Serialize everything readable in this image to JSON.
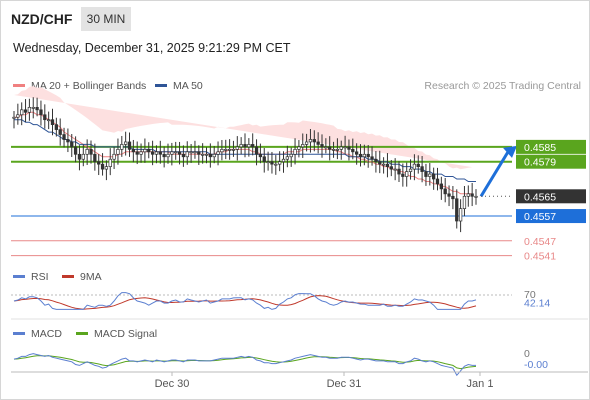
{
  "header": {
    "symbol": "NZD/CHF",
    "timeframe": "30 MIN",
    "datetime": "Wednesday, December 31, 2025 9:21:29 PM CET",
    "research": "Research © 2025 Trading Central"
  },
  "legend": {
    "ma20": "MA 20 + Bollinger Bands",
    "ma50": "MA 50",
    "rsi": "RSI",
    "rsi_ma": "9MA",
    "macd": "MACD",
    "macd_signal": "MACD Signal"
  },
  "colors": {
    "ma20": "#f08080",
    "bollinger_fill": "#fde0e0",
    "ma50": "#2f5597",
    "resistance": "#5aa51e",
    "current": "#1e6fd9",
    "support": "#e88888",
    "candle": "#333333",
    "rsi": "#5b7fd0",
    "rsi_ma": "#c0392b",
    "macd": "#5b7fd0",
    "macd_signal": "#5aa51e"
  },
  "chart_data": {
    "type": "candlestick",
    "instrument": "NZD/CHF",
    "ylim": [
      0.4538,
      0.4606
    ],
    "x_labels": [
      "Dec 30",
      "Dec 31",
      "Jan 1"
    ],
    "levels": [
      {
        "label": "0.4585",
        "value": 0.4585,
        "kind": "resistance"
      },
      {
        "label": "0.4579",
        "value": 0.4579,
        "kind": "resistance"
      },
      {
        "label": "0.4565",
        "value": 0.4565,
        "kind": "last"
      },
      {
        "label": "0.4557",
        "value": 0.4557,
        "kind": "pivot"
      },
      {
        "label": "0.4547",
        "value": 0.4547,
        "kind": "support"
      },
      {
        "label": "0.4541",
        "value": 0.4541,
        "kind": "support"
      }
    ],
    "close": [
      0.4597,
      0.4598,
      0.46,
      0.4599,
      0.4601,
      0.4601,
      0.46,
      0.4598,
      0.4596,
      0.4596,
      0.4594,
      0.4592,
      0.459,
      0.4588,
      0.4587,
      0.4585,
      0.4582,
      0.458,
      0.4582,
      0.4584,
      0.4582,
      0.4579,
      0.4578,
      0.4576,
      0.4577,
      0.458,
      0.4582,
      0.4584,
      0.4586,
      0.4587,
      0.4584,
      0.4583,
      0.4582,
      0.4583,
      0.4584,
      0.4583,
      0.4582,
      0.4583,
      0.4582,
      0.4581,
      0.4582,
      0.4583,
      0.4583,
      0.4582,
      0.4581,
      0.4583,
      0.4583,
      0.4583,
      0.4582,
      0.4582,
      0.4582,
      0.4581,
      0.4582,
      0.4583,
      0.4584,
      0.4584,
      0.4584,
      0.4584,
      0.4585,
      0.4586,
      0.4585,
      0.4586,
      0.4585,
      0.4582,
      0.4581,
      0.4579,
      0.4579,
      0.4578,
      0.4578,
      0.4579,
      0.458,
      0.4581,
      0.4582,
      0.4584,
      0.4585,
      0.4586,
      0.4587,
      0.4588,
      0.4587,
      0.4586,
      0.4585,
      0.4585,
      0.4584,
      0.4584,
      0.4584,
      0.4585,
      0.4585,
      0.4584,
      0.4583,
      0.4582,
      0.4581,
      0.4582,
      0.4581,
      0.458,
      0.4579,
      0.4578,
      0.4578,
      0.4577,
      0.4576,
      0.4576,
      0.4574,
      0.4573,
      0.4575,
      0.4576,
      0.4578,
      0.4577,
      0.4575,
      0.4573,
      0.4574,
      0.4572,
      0.457,
      0.4568,
      0.4566,
      0.4565,
      0.4564,
      0.4555,
      0.456,
      0.4565,
      0.4566,
      0.4565,
      0.4565
    ],
    "ma20": [
      0.4597,
      0.4597,
      0.4598,
      0.4598,
      0.4599,
      0.4599,
      0.4598,
      0.4598,
      0.4597,
      0.4596,
      0.4595,
      0.4594,
      0.4593,
      0.4591,
      0.459,
      0.4589,
      0.4588,
      0.4587,
      0.4586,
      0.4585,
      0.4584,
      0.4583,
      0.4582,
      0.4581,
      0.4581,
      0.4581,
      0.4581,
      0.4582,
      0.4582,
      0.4583,
      0.4583,
      0.4583,
      0.4583,
      0.4583,
      0.4583,
      0.4583,
      0.4583,
      0.4583,
      0.4583,
      0.4583,
      0.4583,
      0.4582,
      0.4582,
      0.4582,
      0.4582,
      0.4582,
      0.4582,
      0.4582,
      0.4582,
      0.4582,
      0.4582,
      0.4582,
      0.4582,
      0.4583,
      0.4583,
      0.4583,
      0.4584,
      0.4584,
      0.4584,
      0.4584,
      0.4584,
      0.4584,
      0.4583,
      0.4583,
      0.4582,
      0.4582,
      0.4582,
      0.4582,
      0.4582,
      0.4582,
      0.4582,
      0.4583,
      0.4583,
      0.4583,
      0.4583,
      0.4584,
      0.4584,
      0.4584,
      0.4584,
      0.4584,
      0.4584,
      0.4584,
      0.4584,
      0.4584,
      0.4583,
      0.4583,
      0.4582,
      0.4582,
      0.4581,
      0.4581,
      0.458,
      0.458,
      0.4579,
      0.4579,
      0.4578,
      0.4578,
      0.4577,
      0.4577,
      0.4576,
      0.4576,
      0.4575,
      0.4575,
      0.4574,
      0.4573,
      0.4573,
      0.4572,
      0.4572,
      0.4571,
      0.4571,
      0.457,
      0.457,
      0.4569,
      0.4569,
      0.4568,
      0.4567,
      0.4567,
      0.4566,
      0.4566,
      0.4566,
      0.4566
    ],
    "ma50": [
      0.4596,
      0.4596,
      0.4596,
      0.4595,
      0.4595,
      0.4594,
      0.4594,
      0.4593,
      0.4592,
      0.4591,
      0.4591,
      0.459,
      0.4589,
      0.4588,
      0.4588,
      0.4587,
      0.4587,
      0.4586,
      0.4586,
      0.4586,
      0.4586,
      0.4585,
      0.4585,
      0.4585,
      0.4585,
      0.4585,
      0.4585,
      0.4585,
      0.4585,
      0.4585,
      0.4585,
      0.4584,
      0.4584,
      0.4584,
      0.4584,
      0.4584,
      0.4584,
      0.4583,
      0.4583,
      0.4583,
      0.4583,
      0.4583,
      0.4583,
      0.4583,
      0.4583,
      0.4583,
      0.4583,
      0.4583,
      0.4583,
      0.4583,
      0.4583,
      0.4582,
      0.4582,
      0.4582,
      0.4582,
      0.4582,
      0.4582,
      0.4582,
      0.4582,
      0.4582,
      0.4582,
      0.4582,
      0.4582,
      0.4582,
      0.4582,
      0.4582,
      0.4582,
      0.4582,
      0.4582,
      0.4582,
      0.4582,
      0.4582,
      0.4582,
      0.4582,
      0.4582,
      0.4582,
      0.4582,
      0.4582,
      0.4582,
      0.4582,
      0.4582,
      0.4582,
      0.4582,
      0.4582,
      0.4582,
      0.4582,
      0.4582,
      0.4581,
      0.4581,
      0.4581,
      0.4581,
      0.4581,
      0.458,
      0.458,
      0.458,
      0.4579,
      0.4579,
      0.4579,
      0.4578,
      0.4578,
      0.4578,
      0.4577,
      0.4577,
      0.4577,
      0.4576,
      0.4576,
      0.4576,
      0.4575,
      0.4575,
      0.4574,
      0.4574,
      0.4574,
      0.4573,
      0.4573,
      0.4573,
      0.4572,
      0.4572,
      0.4572,
      0.4571,
      0.4571,
      0.4571
    ],
    "projection": {
      "from": 0.4565,
      "to": 0.4585
    },
    "rsi": {
      "label": "42.14",
      "value": 42.14,
      "level": 70,
      "ylim": [
        0,
        100
      ]
    },
    "macd": {
      "label": "-0.00",
      "value": -0.0,
      "zero_label": "0"
    }
  }
}
